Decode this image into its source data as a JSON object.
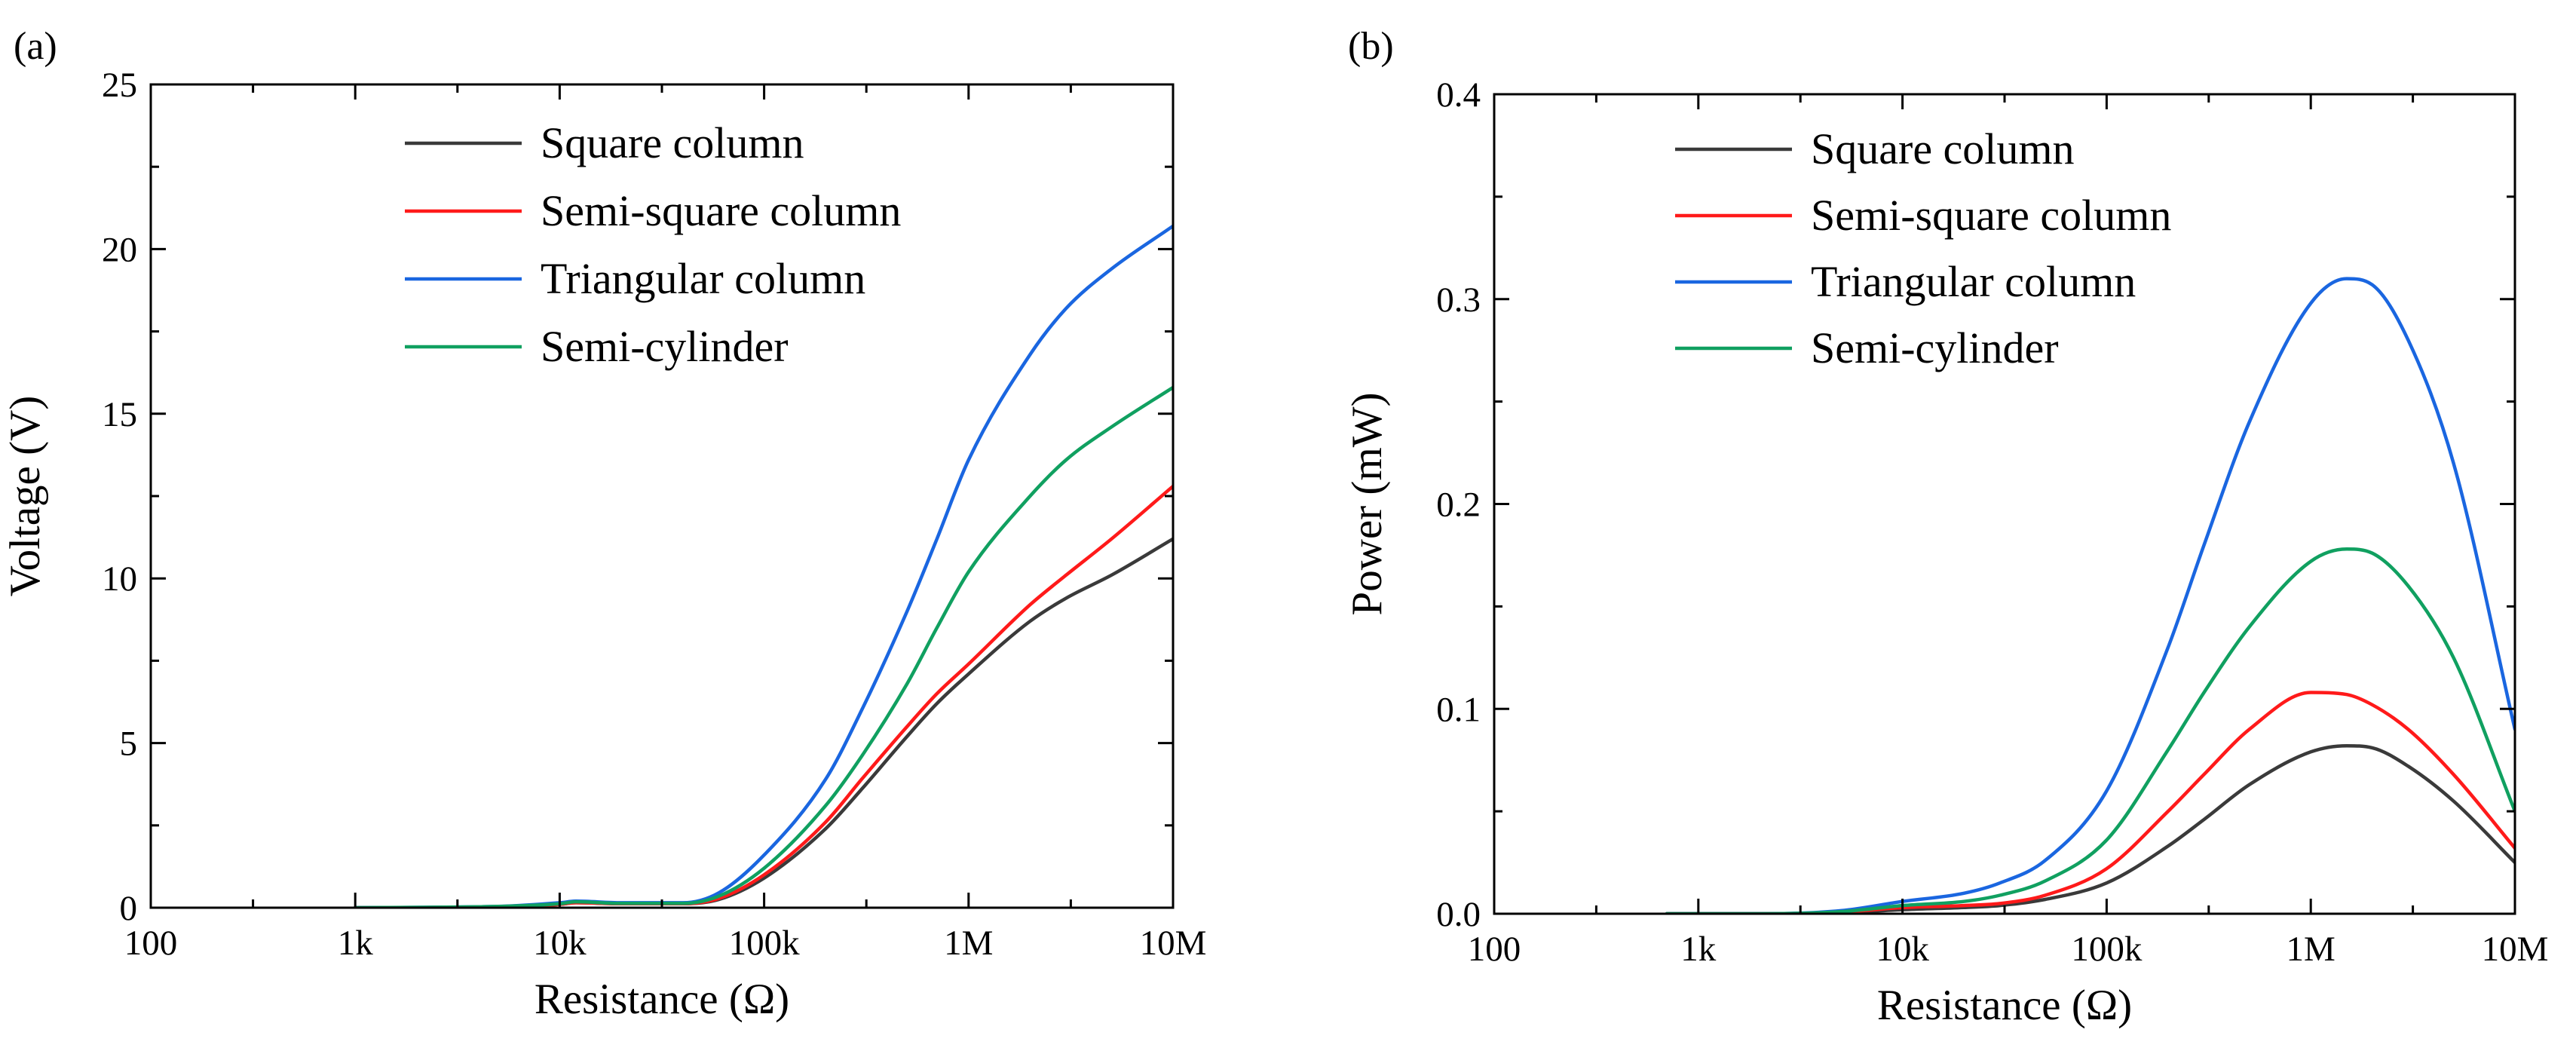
{
  "chart_data": [
    {
      "panel_label": "(a)",
      "type": "line",
      "xscale": "log",
      "xlabel": "Resistance (Ω)",
      "ylabel": "Voltage (V)",
      "xlim": [
        100,
        10000000
      ],
      "ylim": [
        0,
        25
      ],
      "x_ticks": [
        {
          "value": 100,
          "label": "100"
        },
        {
          "value": 1000,
          "label": "1k"
        },
        {
          "value": 10000,
          "label": "10k"
        },
        {
          "value": 100000,
          "label": "100k"
        },
        {
          "value": 1000000,
          "label": "1M"
        },
        {
          "value": 10000000,
          "label": "10M"
        }
      ],
      "y_ticks": [
        {
          "value": 0,
          "label": "0"
        },
        {
          "value": 5,
          "label": "5"
        },
        {
          "value": 10,
          "label": "10"
        },
        {
          "value": 15,
          "label": "15"
        },
        {
          "value": 20,
          "label": "20"
        },
        {
          "value": 25,
          "label": "25"
        }
      ],
      "legend_position": "top-center",
      "series": [
        {
          "name": "Square column",
          "color": "#3a3a3a",
          "x": [
            1000,
            5000,
            10000,
            12000,
            20000,
            40000,
            60000,
            100000,
            200000,
            300000,
            500000,
            700000,
            1000000,
            2000000,
            3000000,
            5000000,
            10000000
          ],
          "y": [
            0,
            0.03,
            0.1,
            0.15,
            0.12,
            0.12,
            0.25,
            0.9,
            2.4,
            3.6,
            5.2,
            6.2,
            7.1,
            8.7,
            9.4,
            10.1,
            11.2
          ]
        },
        {
          "name": "Semi-square column",
          "color": "#ff1a1a",
          "x": [
            1000,
            5000,
            10000,
            12000,
            20000,
            40000,
            60000,
            100000,
            200000,
            300000,
            500000,
            700000,
            1000000,
            2000000,
            3000000,
            5000000,
            10000000
          ],
          "y": [
            0,
            0.03,
            0.1,
            0.15,
            0.12,
            0.12,
            0.28,
            1.0,
            2.6,
            3.9,
            5.5,
            6.5,
            7.4,
            9.2,
            10.1,
            11.2,
            12.8
          ]
        },
        {
          "name": "Triangular column",
          "color": "#1a66e0",
          "x": [
            1000,
            5000,
            10000,
            12000,
            20000,
            40000,
            60000,
            100000,
            200000,
            300000,
            500000,
            700000,
            1000000,
            2000000,
            3000000,
            5000000,
            10000000
          ],
          "y": [
            0,
            0.04,
            0.15,
            0.2,
            0.15,
            0.15,
            0.45,
            1.6,
            3.9,
            6.0,
            9.0,
            11.2,
            13.6,
            16.8,
            18.2,
            19.4,
            20.7
          ]
        },
        {
          "name": "Semi-cylinder",
          "color": "#10a060",
          "x": [
            1000,
            5000,
            10000,
            12000,
            20000,
            40000,
            60000,
            100000,
            200000,
            300000,
            500000,
            700000,
            1000000,
            2000000,
            3000000,
            5000000,
            10000000
          ],
          "y": [
            0,
            0.04,
            0.12,
            0.18,
            0.13,
            0.13,
            0.35,
            1.2,
            3.1,
            4.6,
            6.8,
            8.5,
            10.2,
            12.5,
            13.6,
            14.6,
            15.8
          ]
        }
      ]
    },
    {
      "panel_label": "(b)",
      "type": "line",
      "xscale": "log",
      "xlabel": "Resistance (Ω)",
      "ylabel": "Power (mW)",
      "xlim": [
        100,
        10000000
      ],
      "ylim": [
        0,
        0.4
      ],
      "x_ticks": [
        {
          "value": 100,
          "label": "100"
        },
        {
          "value": 1000,
          "label": "1k"
        },
        {
          "value": 10000,
          "label": "10k"
        },
        {
          "value": 100000,
          "label": "100k"
        },
        {
          "value": 1000000,
          "label": "1M"
        },
        {
          "value": 10000000,
          "label": "10M"
        }
      ],
      "y_ticks": [
        {
          "value": 0,
          "label": "0.0"
        },
        {
          "value": 0.1,
          "label": "0.1"
        },
        {
          "value": 0.2,
          "label": "0.2"
        },
        {
          "value": 0.3,
          "label": "0.3"
        },
        {
          "value": 0.4,
          "label": "0.4"
        }
      ],
      "legend_position": "top-center",
      "series": [
        {
          "name": "Square column",
          "color": "#3a3a3a",
          "x": [
            700,
            2000,
            5000,
            10000,
            20000,
            30000,
            50000,
            100000,
            200000,
            300000,
            500000,
            1000000,
            1500000,
            2000000,
            3000000,
            5000000,
            10000000
          ],
          "y": [
            0,
            0,
            0.0005,
            0.002,
            0.003,
            0.004,
            0.007,
            0.015,
            0.033,
            0.046,
            0.063,
            0.079,
            0.082,
            0.081,
            0.072,
            0.055,
            0.025
          ]
        },
        {
          "name": "Semi-square column",
          "color": "#ff1a1a",
          "x": [
            700,
            2000,
            5000,
            10000,
            20000,
            30000,
            50000,
            100000,
            200000,
            300000,
            500000,
            1000000,
            1500000,
            2000000,
            3000000,
            5000000,
            10000000
          ],
          "y": [
            0,
            0,
            0.0008,
            0.003,
            0.004,
            0.005,
            0.009,
            0.022,
            0.05,
            0.068,
            0.09,
            0.108,
            0.107,
            0.102,
            0.09,
            0.068,
            0.032
          ]
        },
        {
          "name": "Triangular column",
          "color": "#1a66e0",
          "x": [
            700,
            2000,
            5000,
            10000,
            20000,
            30000,
            50000,
            100000,
            200000,
            300000,
            500000,
            1000000,
            1500000,
            2000000,
            3000000,
            5000000,
            10000000
          ],
          "y": [
            0,
            0,
            0.0015,
            0.006,
            0.01,
            0.015,
            0.026,
            0.06,
            0.13,
            0.18,
            0.24,
            0.298,
            0.31,
            0.307,
            0.28,
            0.22,
            0.09
          ]
        },
        {
          "name": "Semi-cylinder",
          "color": "#10a060",
          "x": [
            700,
            2000,
            5000,
            10000,
            20000,
            30000,
            50000,
            100000,
            200000,
            300000,
            500000,
            1000000,
            1500000,
            2000000,
            3000000,
            5000000,
            10000000
          ],
          "y": [
            0,
            0,
            0.001,
            0.004,
            0.006,
            0.009,
            0.016,
            0.036,
            0.08,
            0.108,
            0.14,
            0.172,
            0.178,
            0.176,
            0.16,
            0.125,
            0.05
          ]
        }
      ]
    }
  ]
}
